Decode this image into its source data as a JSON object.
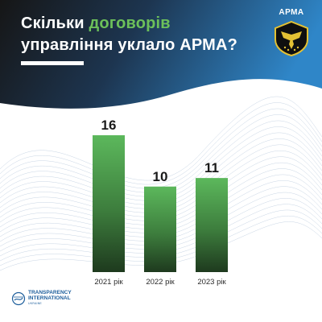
{
  "header": {
    "title_part1": "Скільки ",
    "title_accent": "договорів",
    "title_part2": "управління уклало АРМА?"
  },
  "logo": {
    "name": "АРМА",
    "icon": "shield-emblem-icon"
  },
  "footer": {
    "org_line1": "TRANSPARENCY",
    "org_line2": "INTERNATIONAL",
    "org_line3": "UKRAINE",
    "icon": "globe-icon"
  },
  "colors": {
    "header_dark": "#1c1c1c",
    "header_blue": "#2f86c8",
    "bar_top": "#5cb85c",
    "bar_bottom": "#1e3a1e",
    "accent": "#6cc05a"
  },
  "chart_data": {
    "type": "bar",
    "categories": [
      "2021 рік",
      "2022 рік",
      "2023 рік"
    ],
    "values": [
      16,
      10,
      11
    ],
    "data_labels": [
      "16",
      "10",
      "11"
    ],
    "ylim": [
      0,
      16
    ],
    "grid": false,
    "legend": "none"
  }
}
